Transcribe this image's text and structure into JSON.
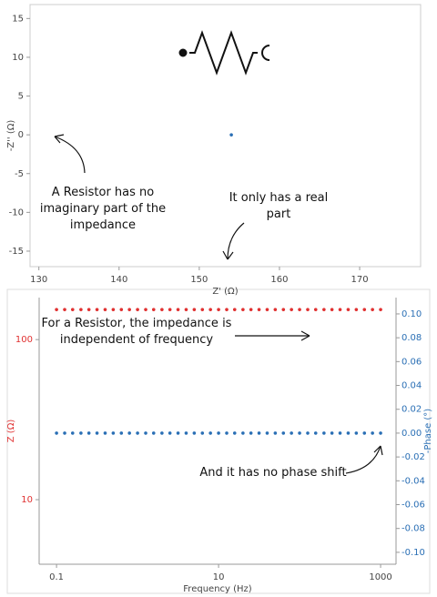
{
  "chart_data": [
    {
      "type": "scatter",
      "xlabel": "Z' (Ω)",
      "ylabel": "-Z'' (Ω)",
      "x": [
        154
      ],
      "values": [
        0
      ],
      "color": "#2a6fb5",
      "xlim": [
        128.9,
        177.6
      ],
      "xticks": [
        130,
        140,
        150,
        160,
        170
      ],
      "ylim": [
        -17,
        16.8
      ],
      "yticks": [
        -15,
        -10,
        -5,
        0,
        5,
        10,
        15
      ],
      "annotations": [
        "A Resistor has no imaginary part of the impedance",
        "It only has a real part"
      ]
    },
    {
      "type": "scatter",
      "xlabel": "Frequency (Hz)",
      "ylabel": "Z (Ω)",
      "y2label": "-Phase (°)",
      "xlog": true,
      "ylog": true,
      "x": [
        0.1,
        0.126,
        0.158,
        0.2,
        0.251,
        0.316,
        0.398,
        0.501,
        0.631,
        0.794,
        1,
        1.26,
        1.58,
        2,
        2.51,
        3.16,
        3.98,
        5.01,
        6.31,
        7.94,
        10,
        12.6,
        15.8,
        20,
        25.1,
        31.6,
        39.8,
        50.1,
        63.1,
        79.4,
        100,
        126,
        158,
        200,
        251,
        316,
        398,
        501,
        631,
        794,
        1000
      ],
      "series": [
        {
          "color": "#e03030",
          "values": [
            154,
            154,
            154,
            154,
            154,
            154,
            154,
            154,
            154,
            154,
            154,
            154,
            154,
            154,
            154,
            154,
            154,
            154,
            154,
            154,
            154,
            154,
            154,
            154,
            154,
            154,
            154,
            154,
            154,
            154,
            154,
            154,
            154,
            154,
            154,
            154,
            154,
            154,
            154,
            154,
            154
          ]
        },
        {
          "color": "#2a6fb5",
          "axis": "y2",
          "values": [
            0,
            0,
            0,
            0,
            0,
            0,
            0,
            0,
            0,
            0,
            0,
            0,
            0,
            0,
            0,
            0,
            0,
            0,
            0,
            0,
            0,
            0,
            0,
            0,
            0,
            0,
            0,
            0,
            0,
            0,
            0,
            0,
            0,
            0,
            0,
            0,
            0,
            0,
            0,
            0,
            0
          ]
        }
      ],
      "xlim": [
        0.061,
        1550
      ],
      "xticks": [
        0.1,
        10,
        1000
      ],
      "ylim": [
        3.95,
        183
      ],
      "yticks": [
        10,
        100
      ],
      "y2lim": [
        -0.11,
        0.1137
      ],
      "y2ticks": [
        {
          "value": -0.1,
          "label": "-0.10"
        },
        {
          "value": -0.08,
          "label": "-0.08"
        },
        {
          "value": -0.06,
          "label": "-0.06"
        },
        {
          "value": -0.04,
          "label": "-0.04"
        },
        {
          "value": -0.02,
          "label": "-0.02"
        },
        {
          "value": 0,
          "label": "0.00"
        },
        {
          "value": 0.02,
          "label": "0.02"
        },
        {
          "value": 0.04,
          "label": "0.04"
        },
        {
          "value": 0.06,
          "label": "0.06"
        },
        {
          "value": 0.08,
          "label": "0.08"
        },
        {
          "value": 0.1,
          "label": "0.10"
        }
      ],
      "annotations": [
        "For a Resistor, the impedance is independent of frequency",
        "And it has no phase shift"
      ]
    }
  ]
}
